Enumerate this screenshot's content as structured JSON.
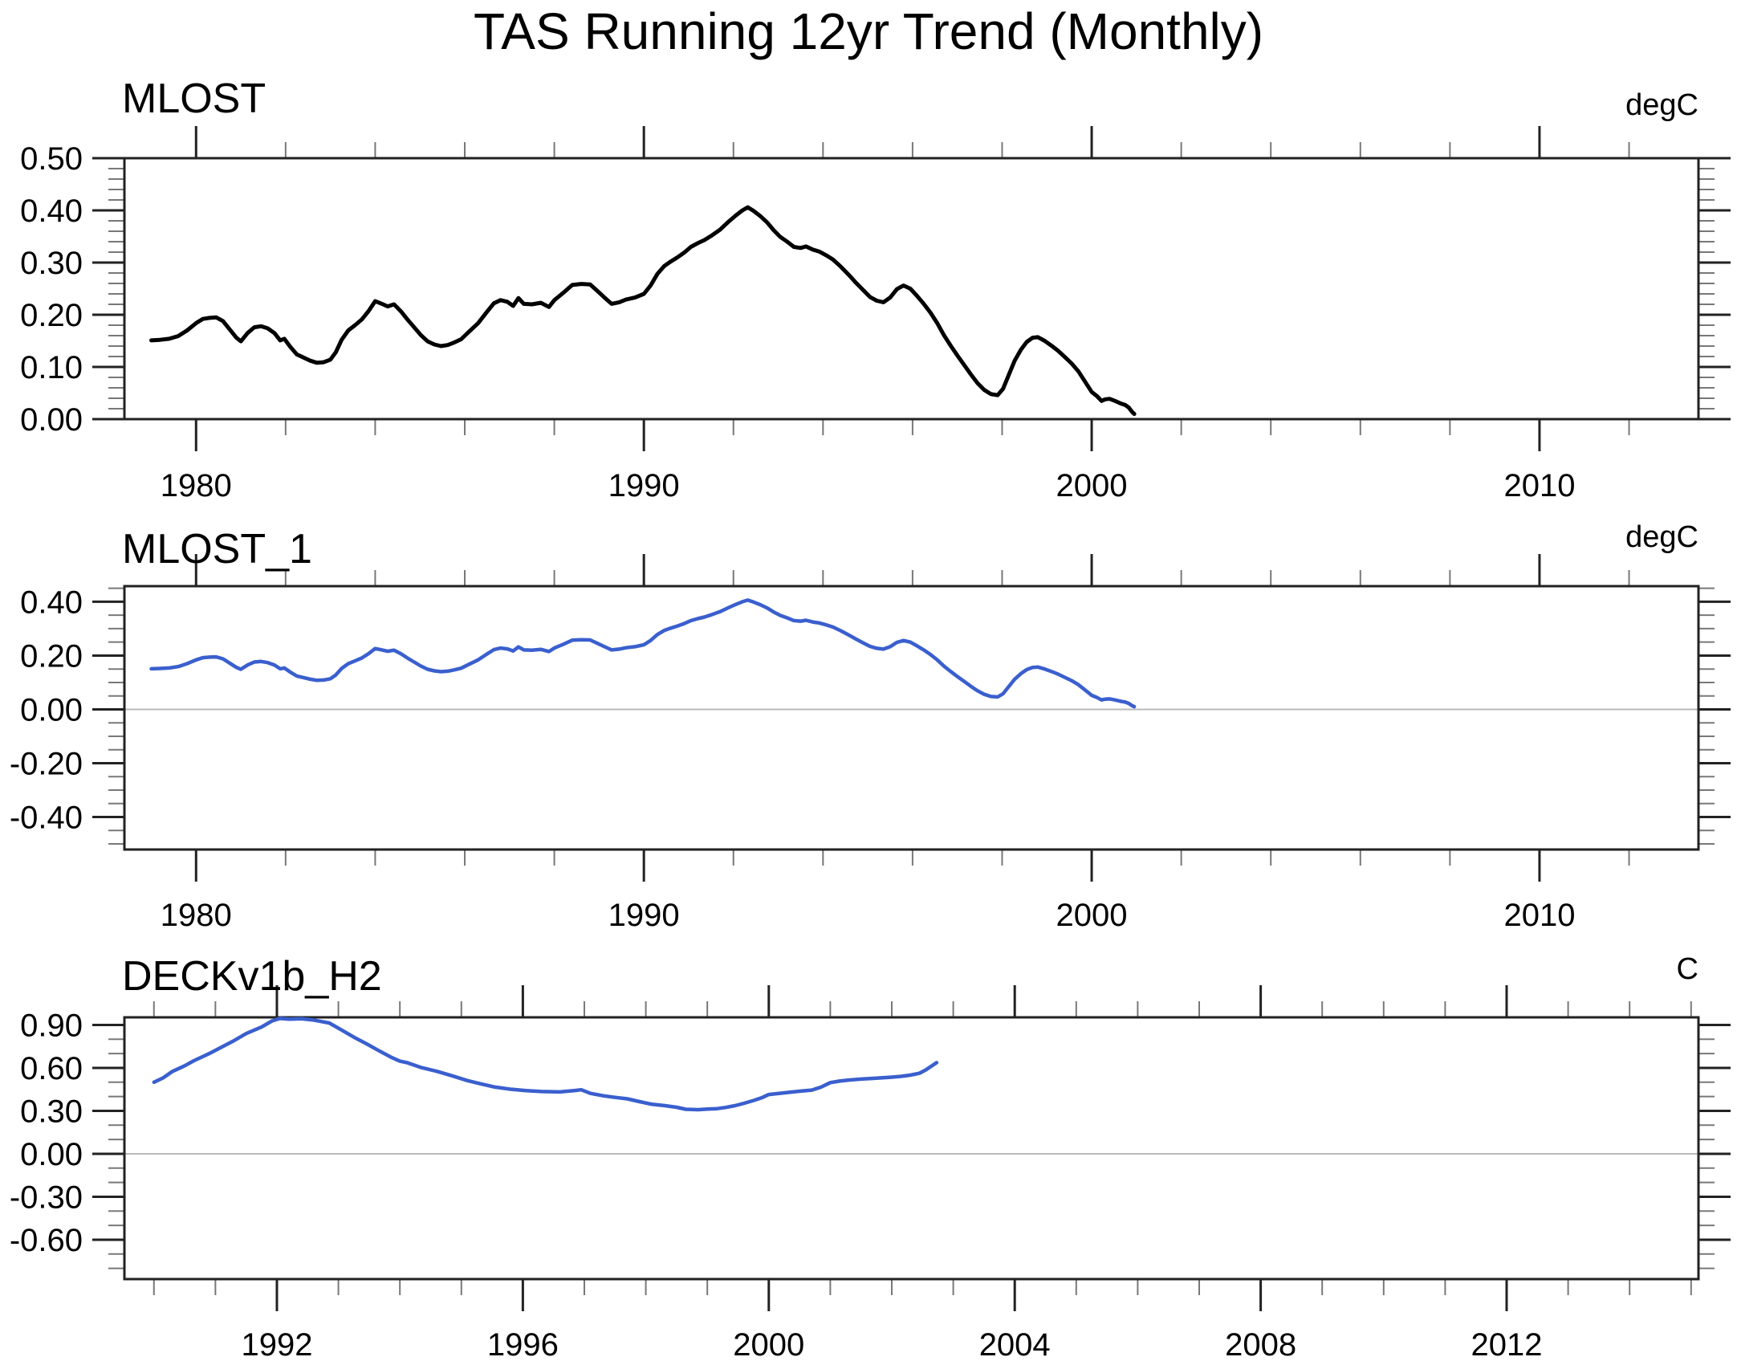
{
  "page_title": "TAS Running 12yr Trend (Monthly)",
  "series": {
    "MLOST": {
      "x": [
        1979.0,
        1979.2,
        1979.4,
        1979.6,
        1979.8,
        1980.0,
        1980.15,
        1980.3,
        1980.45,
        1980.6,
        1980.75,
        1980.9,
        1981.0,
        1981.15,
        1981.3,
        1981.45,
        1981.6,
        1981.75,
        1981.88,
        1981.97,
        1982.1,
        1982.25,
        1982.4,
        1982.55,
        1982.7,
        1982.85,
        1983.0,
        1983.12,
        1983.25,
        1983.4,
        1983.55,
        1983.7,
        1983.85,
        1984.0,
        1984.15,
        1984.28,
        1984.42,
        1984.58,
        1984.72,
        1984.87,
        1985.02,
        1985.17,
        1985.32,
        1985.47,
        1985.62,
        1985.77,
        1985.92,
        1986.1,
        1986.3,
        1986.5,
        1986.65,
        1986.8,
        1986.95,
        1987.08,
        1987.2,
        1987.32,
        1987.5,
        1987.7,
        1987.88,
        1988.0,
        1988.2,
        1988.4,
        1988.6,
        1988.8,
        1988.97,
        1989.12,
        1989.28,
        1989.45,
        1989.6,
        1989.8,
        1990.0,
        1990.15,
        1990.3,
        1990.45,
        1990.6,
        1990.75,
        1990.9,
        1991.05,
        1991.2,
        1991.35,
        1991.5,
        1991.7,
        1991.9,
        1992.05,
        1992.2,
        1992.32,
        1992.45,
        1992.6,
        1992.75,
        1992.9,
        1993.05,
        1993.2,
        1993.35,
        1993.5,
        1993.62,
        1993.77,
        1993.92,
        1994.07,
        1994.22,
        1994.4,
        1994.58,
        1994.74,
        1994.9,
        1995.05,
        1995.2,
        1995.35,
        1995.5,
        1995.65,
        1995.8,
        1995.95,
        1996.1,
        1996.25,
        1996.4,
        1996.55,
        1996.7,
        1996.85,
        1997.0,
        1997.15,
        1997.3,
        1997.45,
        1997.6,
        1997.75,
        1997.9,
        1998.02,
        1998.15,
        1998.28,
        1998.42,
        1998.55,
        1998.68,
        1998.8,
        1998.95,
        1999.1,
        1999.25,
        1999.4,
        1999.55,
        1999.7,
        1999.85,
        2000.0,
        2000.12,
        2000.22,
        2000.3,
        2000.4,
        2000.52,
        2000.65,
        2000.75,
        2000.83,
        2000.9,
        2000.95
      ],
      "values": [
        0.151,
        0.152,
        0.154,
        0.159,
        0.17,
        0.184,
        0.192,
        0.194,
        0.195,
        0.188,
        0.172,
        0.156,
        0.149,
        0.165,
        0.176,
        0.178,
        0.174,
        0.165,
        0.151,
        0.154,
        0.139,
        0.124,
        0.118,
        0.112,
        0.108,
        0.109,
        0.114,
        0.128,
        0.152,
        0.17,
        0.18,
        0.191,
        0.207,
        0.226,
        0.221,
        0.216,
        0.22,
        0.206,
        0.191,
        0.176,
        0.161,
        0.149,
        0.143,
        0.14,
        0.142,
        0.147,
        0.153,
        0.168,
        0.184,
        0.206,
        0.222,
        0.228,
        0.225,
        0.217,
        0.232,
        0.221,
        0.22,
        0.223,
        0.215,
        0.228,
        0.242,
        0.257,
        0.259,
        0.258,
        0.245,
        0.233,
        0.221,
        0.224,
        0.229,
        0.233,
        0.24,
        0.256,
        0.278,
        0.293,
        0.302,
        0.31,
        0.319,
        0.33,
        0.337,
        0.343,
        0.351,
        0.363,
        0.379,
        0.39,
        0.4,
        0.406,
        0.399,
        0.389,
        0.377,
        0.362,
        0.349,
        0.34,
        0.33,
        0.328,
        0.331,
        0.325,
        0.321,
        0.314,
        0.306,
        0.292,
        0.276,
        0.261,
        0.247,
        0.234,
        0.227,
        0.224,
        0.233,
        0.249,
        0.256,
        0.25,
        0.236,
        0.221,
        0.204,
        0.184,
        0.161,
        0.141,
        0.122,
        0.104,
        0.086,
        0.069,
        0.056,
        0.048,
        0.046,
        0.058,
        0.085,
        0.112,
        0.133,
        0.148,
        0.156,
        0.157,
        0.15,
        0.141,
        0.131,
        0.119,
        0.107,
        0.092,
        0.072,
        0.052,
        0.044,
        0.035,
        0.038,
        0.039,
        0.035,
        0.03,
        0.027,
        0.022,
        0.014,
        0.01
      ]
    },
    "DECKv1b_H2": {
      "x": [
        1990.0,
        1990.15,
        1990.3,
        1990.5,
        1990.65,
        1990.9,
        1991.1,
        1991.3,
        1991.5,
        1991.75,
        1991.92,
        1992.05,
        1992.2,
        1992.4,
        1992.6,
        1992.85,
        1993.05,
        1993.25,
        1993.45,
        1993.65,
        1993.85,
        1994.0,
        1994.12,
        1994.35,
        1994.6,
        1994.85,
        1995.1,
        1995.3,
        1995.55,
        1995.8,
        1996.05,
        1996.3,
        1996.6,
        1996.85,
        1996.95,
        1997.1,
        1997.3,
        1997.5,
        1997.7,
        1997.9,
        1998.1,
        1998.3,
        1998.5,
        1998.65,
        1998.85,
        1999.0,
        1999.15,
        1999.3,
        1999.45,
        1999.6,
        1999.75,
        1999.9,
        2000.0,
        2000.15,
        2000.3,
        2000.5,
        2000.7,
        2000.85,
        2001.0,
        2001.15,
        2001.3,
        2001.5,
        2001.7,
        2001.85,
        2002.0,
        2002.15,
        2002.3,
        2002.45,
        2002.55,
        2002.65,
        2002.73
      ],
      "values": [
        0.5,
        0.53,
        0.575,
        0.615,
        0.65,
        0.7,
        0.745,
        0.79,
        0.84,
        0.885,
        0.928,
        0.945,
        0.94,
        0.943,
        0.934,
        0.914,
        0.865,
        0.815,
        0.77,
        0.722,
        0.676,
        0.647,
        0.636,
        0.602,
        0.576,
        0.545,
        0.511,
        0.49,
        0.466,
        0.451,
        0.441,
        0.435,
        0.432,
        0.442,
        0.447,
        0.422,
        0.406,
        0.394,
        0.384,
        0.364,
        0.346,
        0.337,
        0.325,
        0.311,
        0.308,
        0.312,
        0.315,
        0.324,
        0.336,
        0.353,
        0.372,
        0.394,
        0.414,
        0.421,
        0.428,
        0.437,
        0.445,
        0.466,
        0.497,
        0.508,
        0.515,
        0.522,
        0.527,
        0.531,
        0.535,
        0.541,
        0.549,
        0.563,
        0.585,
        0.614,
        0.637
      ]
    }
  },
  "chart_data": [
    {
      "type": "line",
      "title": "MLOST",
      "unit": "degC",
      "series": "MLOST",
      "line_color": "#000000",
      "xlim": [
        1978.4,
        2013.55
      ],
      "ylim": [
        0.0,
        0.5
      ],
      "xticks": {
        "major": [
          1980,
          1990,
          2000,
          2010
        ],
        "labels": [
          "1980",
          "1990",
          "2000",
          "2010"
        ],
        "minor_step": 2
      },
      "yticks": {
        "major": [
          0.0,
          0.1,
          0.2,
          0.3,
          0.4,
          0.5
        ],
        "labels": [
          "0.00",
          "0.10",
          "0.20",
          "0.30",
          "0.40",
          "0.50"
        ],
        "minor_step": 0.02
      },
      "zero_line": false,
      "grid": false,
      "legend": "none"
    },
    {
      "type": "line",
      "title": "MLOST_1",
      "unit": "degC",
      "series": "MLOST",
      "line_color": "#3a5fce",
      "xlim": [
        1978.4,
        2013.55
      ],
      "ylim": [
        -0.521,
        0.458
      ],
      "xticks": {
        "major": [
          1980,
          1990,
          2000,
          2010
        ],
        "labels": [
          "1980",
          "1990",
          "2000",
          "2010"
        ],
        "minor_step": 2
      },
      "yticks": {
        "major": [
          -0.4,
          -0.2,
          0.0,
          0.2,
          0.4
        ],
        "labels": [
          "-0.40",
          "-0.20",
          "0.00",
          "0.20",
          "0.40"
        ],
        "minor_step": 0.05
      },
      "zero_line": true,
      "grid": false,
      "legend": "none"
    },
    {
      "type": "line",
      "title": "DECKv1b_H2",
      "unit": "C",
      "series": "DECKv1b_H2",
      "line_color": "#3a5fce",
      "xlim": [
        1989.52,
        2015.12
      ],
      "ylim": [
        -0.875,
        0.953
      ],
      "xticks": {
        "major": [
          1992,
          1996,
          2000,
          2004,
          2008,
          2012
        ],
        "labels": [
          "1992",
          "1996",
          "2000",
          "2004",
          "2008",
          "2012"
        ],
        "minor_step": 1
      },
      "yticks": {
        "major": [
          -0.6,
          -0.3,
          0.0,
          0.3,
          0.6,
          0.9
        ],
        "labels": [
          "-0.60",
          "-0.30",
          "0.00",
          "0.30",
          "0.60",
          "0.90"
        ],
        "minor_step": 0.1
      },
      "zero_line": true,
      "grid": false,
      "legend": "none"
    }
  ]
}
